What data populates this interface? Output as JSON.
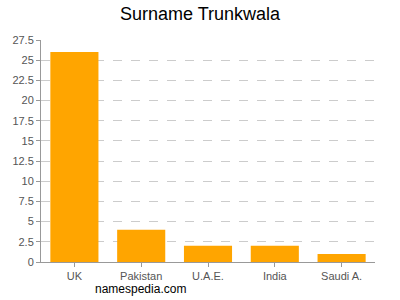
{
  "chart_data": {
    "type": "bar",
    "title": "Surname Trunkwala",
    "categories": [
      "UK",
      "Pakistan",
      "U.A.E.",
      "India",
      "Saudi A."
    ],
    "values": [
      26,
      4,
      2,
      2,
      1
    ],
    "color": "#ffa500",
    "ylim": [
      0,
      27.5
    ],
    "yticks": [
      0,
      2.5,
      5,
      7.5,
      10,
      12.5,
      15,
      17.5,
      20,
      22.5,
      25,
      27.5
    ],
    "grid": true,
    "annotations": [
      "namespedia.com"
    ]
  }
}
